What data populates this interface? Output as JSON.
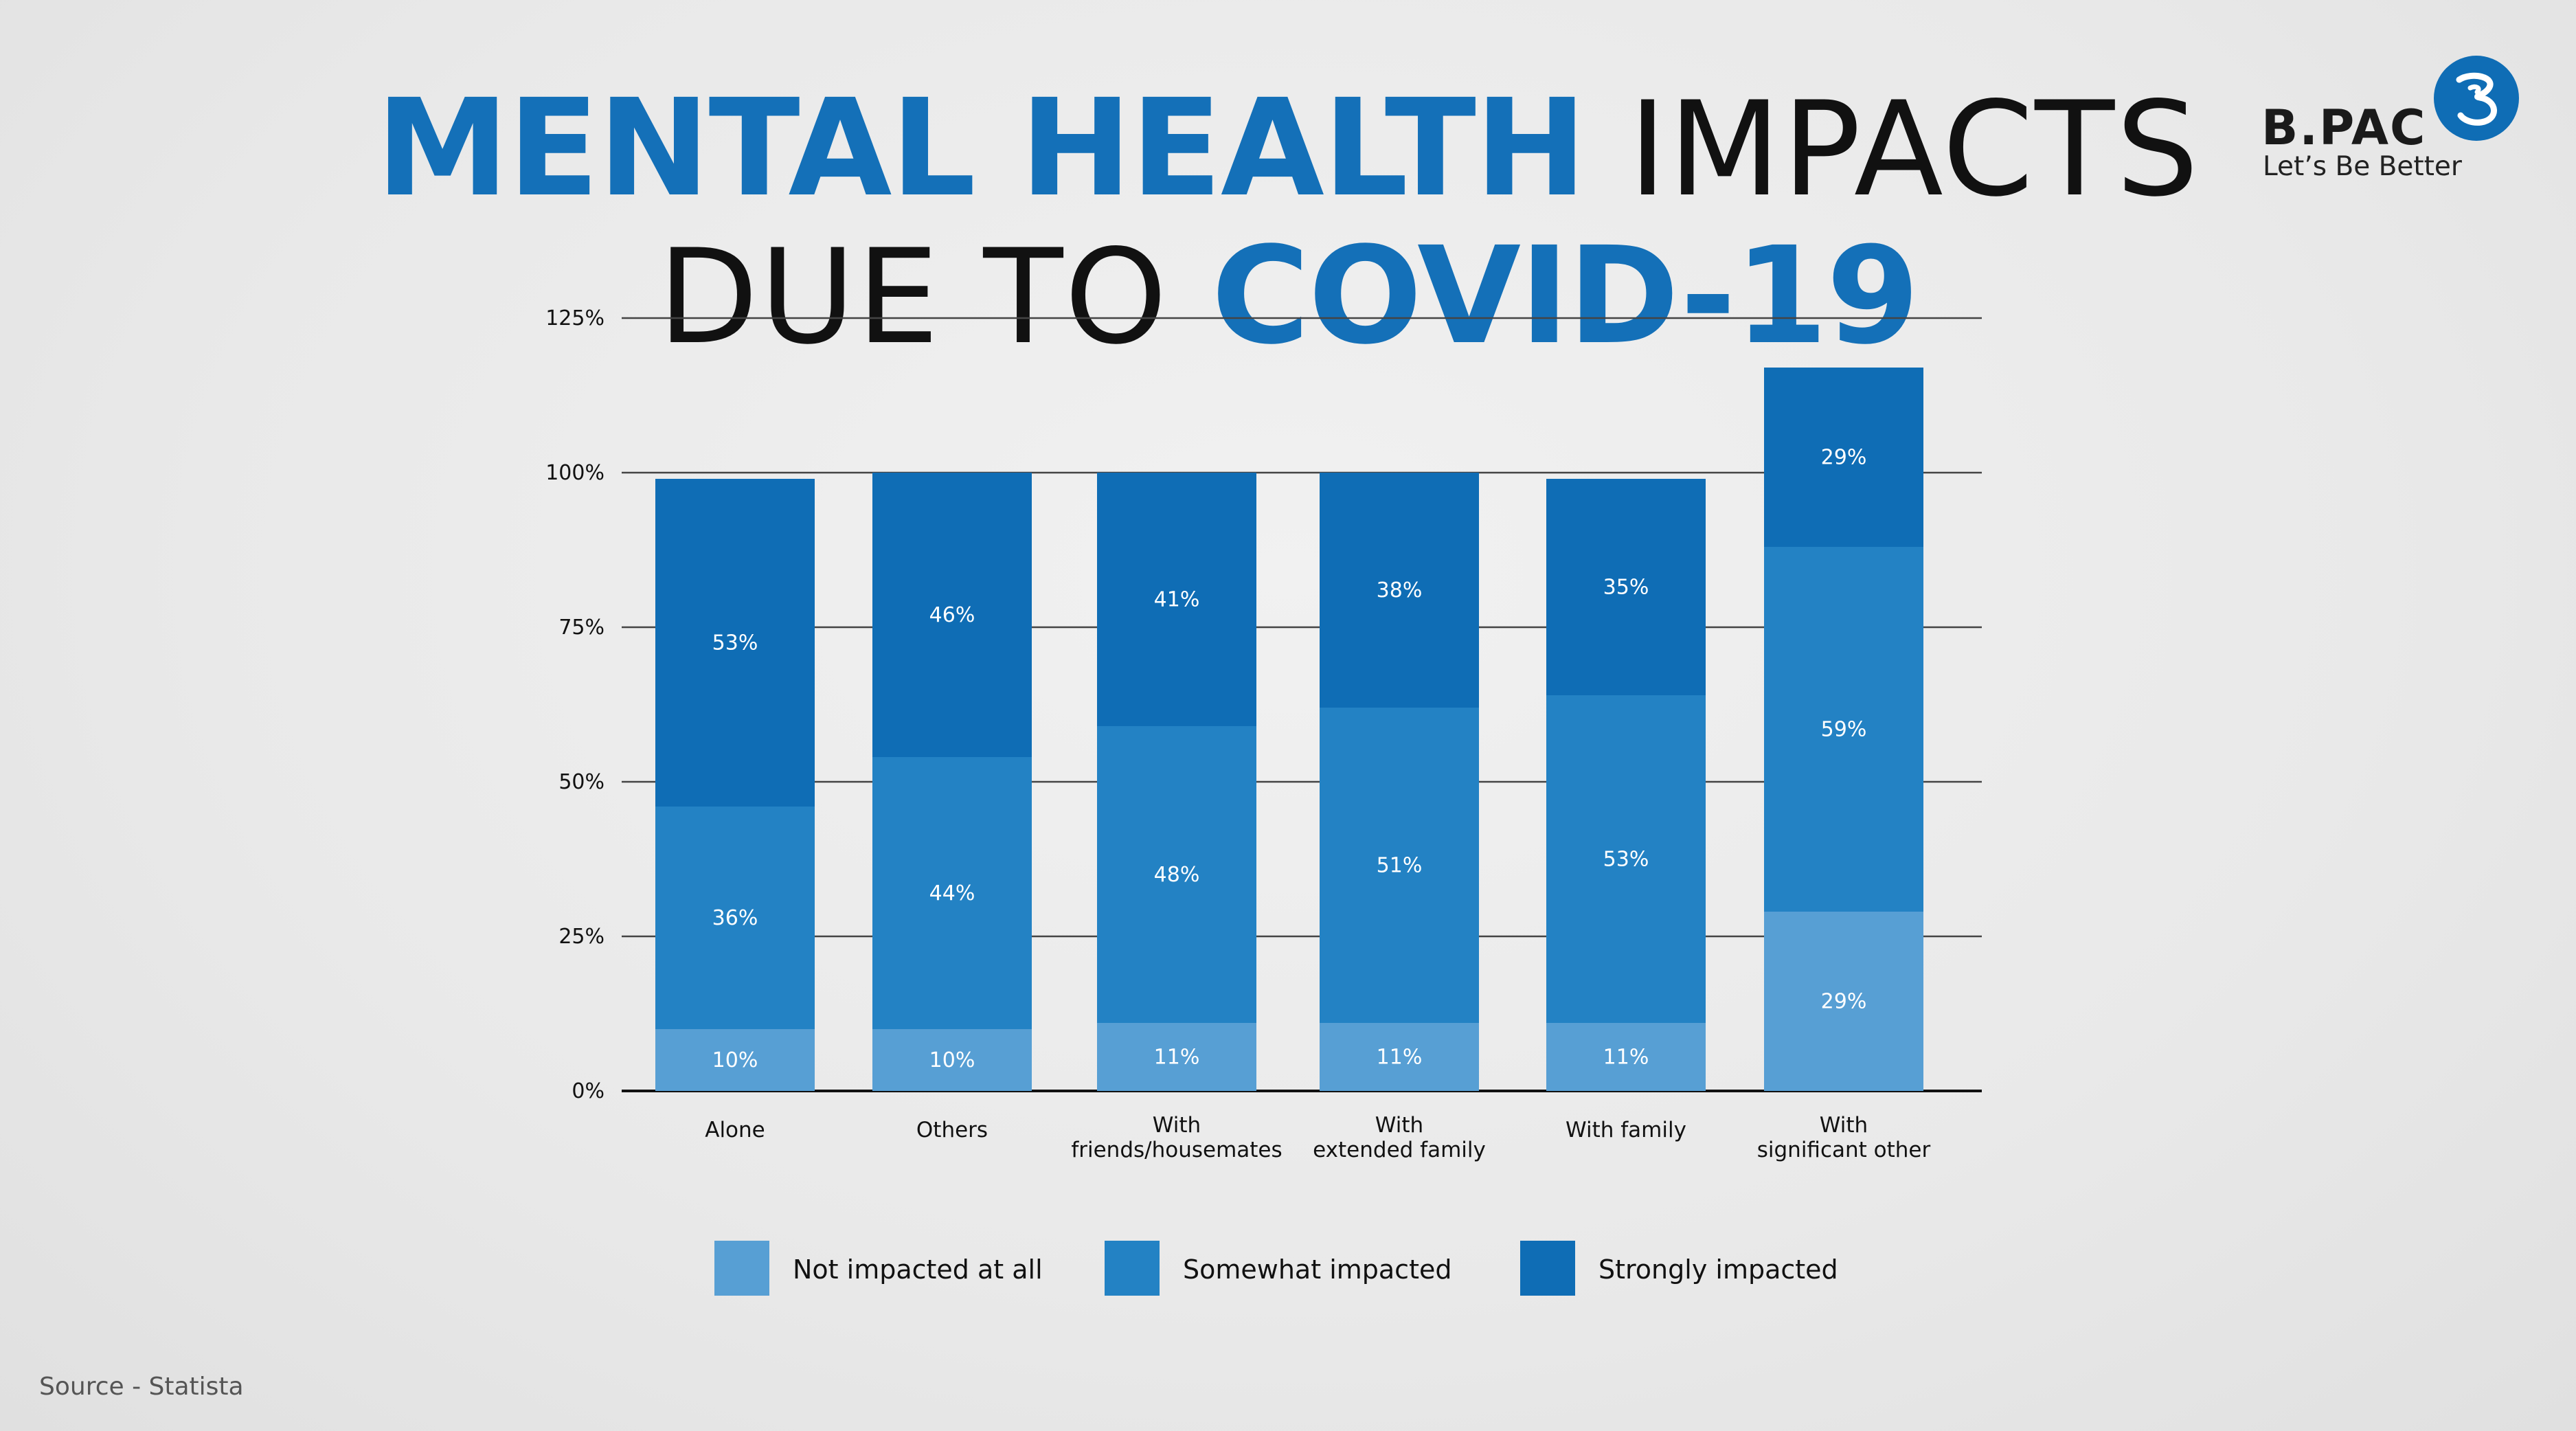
{
  "title": {
    "line1_strong": "MENTAL HEALTH",
    "line1_light": " IMPACTS",
    "line2_light": "DUE TO ",
    "line2_strong": "COVID-19"
  },
  "logo": {
    "name": "B.PAC",
    "tagline": "Let’s Be Better"
  },
  "source": "Source - Statista",
  "colors": {
    "not_impacted": "#579fd4",
    "somewhat": "#2382c4",
    "strongly": "#0f6db5",
    "title_accent": "#1470b8"
  },
  "chart_data": {
    "type": "bar",
    "stacked": true,
    "categories": [
      [
        "Alone"
      ],
      [
        "Others"
      ],
      [
        "With",
        "friends/housemates"
      ],
      [
        "With",
        "extended family"
      ],
      [
        "With family"
      ],
      [
        "With",
        "significant other"
      ]
    ],
    "yticks": [
      "0%",
      "25%",
      "50%",
      "75%",
      "100%",
      "125%"
    ],
    "ylim": [
      0,
      125
    ],
    "grid": true,
    "legend_position": "bottom",
    "series": [
      {
        "name": "Not impacted at all",
        "color": "#579fd4",
        "values": [
          10,
          10,
          11,
          11,
          11,
          29
        ],
        "labels": [
          "10%",
          "10%",
          "11%",
          "11%",
          "11%",
          "29%"
        ]
      },
      {
        "name": "Somewhat impacted",
        "color": "#2382c4",
        "values": [
          36,
          44,
          48,
          51,
          53,
          59
        ],
        "labels": [
          "36%",
          "44%",
          "48%",
          "51%",
          "53%",
          "59%"
        ]
      },
      {
        "name": "Strongly impacted",
        "color": "#0f6db5",
        "values": [
          53,
          46,
          41,
          38,
          35,
          29
        ],
        "labels": [
          "53%",
          "46%",
          "41%",
          "38%",
          "35%",
          "29%"
        ]
      }
    ]
  }
}
